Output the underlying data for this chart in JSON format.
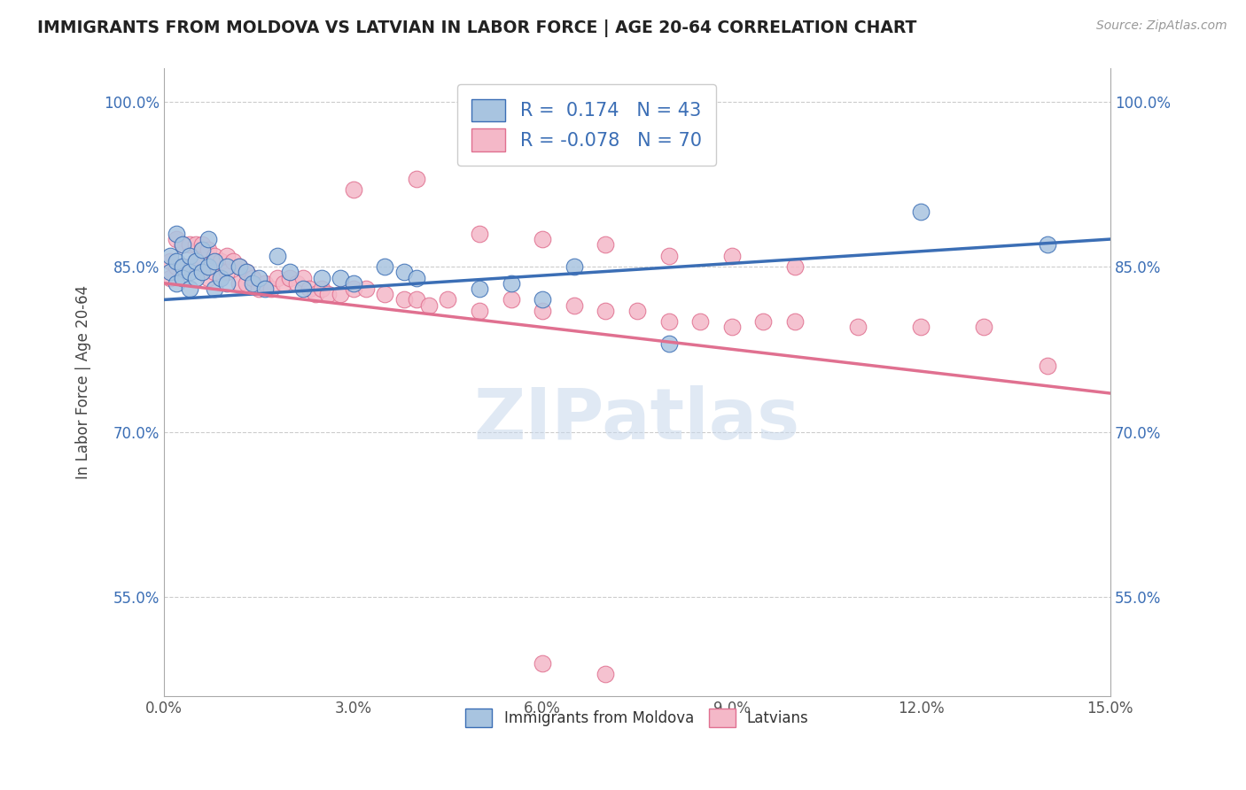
{
  "title": "IMMIGRANTS FROM MOLDOVA VS LATVIAN IN LABOR FORCE | AGE 20-64 CORRELATION CHART",
  "source_text": "Source: ZipAtlas.com",
  "ylabel": "In Labor Force | Age 20-64",
  "xlim": [
    0.0,
    0.15
  ],
  "ylim": [
    0.46,
    1.03
  ],
  "xticks": [
    0.0,
    0.03,
    0.06,
    0.09,
    0.12,
    0.15
  ],
  "xticklabels": [
    "0.0%",
    "3.0%",
    "6.0%",
    "9.0%",
    "12.0%",
    "15.0%"
  ],
  "yticks": [
    0.55,
    0.7,
    0.85,
    1.0
  ],
  "yticklabels": [
    "55.0%",
    "70.0%",
    "85.0%",
    "100.0%"
  ],
  "blue_R": 0.174,
  "blue_N": 43,
  "pink_R": -0.078,
  "pink_N": 70,
  "blue_color": "#a8c4e0",
  "pink_color": "#f4b8c8",
  "blue_line_color": "#3b6eb5",
  "pink_line_color": "#e07090",
  "watermark": "ZIPatlas",
  "blue_line_x0": 0.0,
  "blue_line_y0": 0.82,
  "blue_line_x1": 0.15,
  "blue_line_y1": 0.875,
  "pink_line_x0": 0.0,
  "pink_line_y0": 0.835,
  "pink_line_x1": 0.15,
  "pink_line_y1": 0.735,
  "blue_scatter_x": [
    0.001,
    0.001,
    0.002,
    0.002,
    0.002,
    0.003,
    0.003,
    0.003,
    0.004,
    0.004,
    0.004,
    0.005,
    0.005,
    0.006,
    0.006,
    0.007,
    0.007,
    0.008,
    0.008,
    0.009,
    0.01,
    0.01,
    0.012,
    0.013,
    0.014,
    0.015,
    0.016,
    0.018,
    0.02,
    0.022,
    0.025,
    0.028,
    0.03,
    0.035,
    0.038,
    0.04,
    0.05,
    0.055,
    0.06,
    0.065,
    0.08,
    0.12,
    0.14
  ],
  "blue_scatter_y": [
    0.86,
    0.845,
    0.88,
    0.855,
    0.835,
    0.87,
    0.85,
    0.84,
    0.86,
    0.845,
    0.83,
    0.855,
    0.84,
    0.865,
    0.845,
    0.875,
    0.85,
    0.855,
    0.83,
    0.84,
    0.85,
    0.835,
    0.85,
    0.845,
    0.835,
    0.84,
    0.83,
    0.86,
    0.845,
    0.83,
    0.84,
    0.84,
    0.835,
    0.85,
    0.845,
    0.84,
    0.83,
    0.835,
    0.82,
    0.85,
    0.78,
    0.9,
    0.87
  ],
  "pink_scatter_x": [
    0.001,
    0.001,
    0.002,
    0.002,
    0.003,
    0.003,
    0.004,
    0.004,
    0.005,
    0.005,
    0.006,
    0.006,
    0.007,
    0.007,
    0.008,
    0.008,
    0.009,
    0.01,
    0.01,
    0.011,
    0.012,
    0.012,
    0.013,
    0.013,
    0.014,
    0.015,
    0.016,
    0.017,
    0.018,
    0.019,
    0.02,
    0.021,
    0.022,
    0.023,
    0.024,
    0.025,
    0.026,
    0.028,
    0.03,
    0.032,
    0.035,
    0.038,
    0.04,
    0.042,
    0.045,
    0.05,
    0.055,
    0.06,
    0.065,
    0.07,
    0.075,
    0.08,
    0.085,
    0.09,
    0.095,
    0.1,
    0.11,
    0.12,
    0.13,
    0.14,
    0.03,
    0.04,
    0.05,
    0.06,
    0.07,
    0.08,
    0.09,
    0.1,
    0.06,
    0.07
  ],
  "pink_scatter_y": [
    0.855,
    0.84,
    0.875,
    0.85,
    0.87,
    0.85,
    0.87,
    0.85,
    0.87,
    0.855,
    0.87,
    0.845,
    0.865,
    0.84,
    0.86,
    0.845,
    0.855,
    0.86,
    0.845,
    0.855,
    0.85,
    0.835,
    0.845,
    0.835,
    0.84,
    0.83,
    0.835,
    0.83,
    0.84,
    0.835,
    0.84,
    0.835,
    0.84,
    0.83,
    0.825,
    0.83,
    0.825,
    0.825,
    0.83,
    0.83,
    0.825,
    0.82,
    0.82,
    0.815,
    0.82,
    0.81,
    0.82,
    0.81,
    0.815,
    0.81,
    0.81,
    0.8,
    0.8,
    0.795,
    0.8,
    0.8,
    0.795,
    0.795,
    0.795,
    0.76,
    0.92,
    0.93,
    0.88,
    0.875,
    0.87,
    0.86,
    0.86,
    0.85,
    0.49,
    0.48
  ]
}
